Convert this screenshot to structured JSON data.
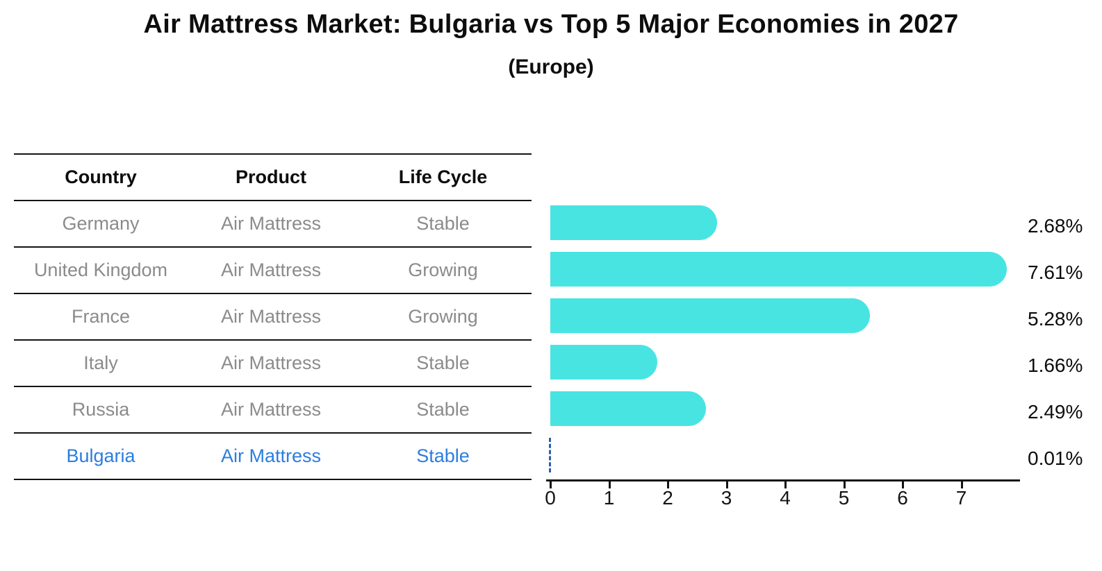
{
  "title": "Air Mattress Market: Bulgaria vs Top 5 Major Economies in 2027",
  "subtitle": "(Europe)",
  "colors": {
    "bar": "#48E4E2",
    "highlight_text": "#2B7DE0",
    "highlight_dash": "#2B5FAE",
    "row_text": "#8B8B8B",
    "line": "#141414"
  },
  "table": {
    "headers": {
      "country": "Country",
      "product": "Product",
      "life_cycle": "Life Cycle"
    },
    "rows": [
      {
        "country": "Germany",
        "product": "Air Mattress",
        "life_cycle": "Stable",
        "highlight": false
      },
      {
        "country": "United Kingdom",
        "product": "Air Mattress",
        "life_cycle": "Growing",
        "highlight": false
      },
      {
        "country": "France",
        "product": "Air Mattress",
        "life_cycle": "Growing",
        "highlight": false
      },
      {
        "country": "Italy",
        "product": "Air Mattress",
        "life_cycle": "Stable",
        "highlight": false
      },
      {
        "country": "Russia",
        "product": "Air Mattress",
        "life_cycle": "Stable",
        "highlight": false
      },
      {
        "country": "Bulgaria",
        "product": "Air Mattress",
        "life_cycle": "Stable",
        "highlight": true
      }
    ]
  },
  "chart_data": {
    "type": "bar",
    "orientation": "horizontal",
    "title": "Air Mattress Market: Bulgaria vs Top 5 Major Economies in 2027",
    "subtitle": "(Europe)",
    "categories": [
      "Germany",
      "United Kingdom",
      "France",
      "Italy",
      "Russia",
      "Bulgaria"
    ],
    "values": [
      2.68,
      7.61,
      5.28,
      1.66,
      2.49,
      0.01
    ],
    "value_labels": [
      "2.68%",
      "7.61%",
      "5.28%",
      "1.66%",
      "2.49%",
      "0.01%"
    ],
    "highlight_index": 5,
    "xlabel": "",
    "ylabel": "",
    "xticks": [
      0,
      1,
      2,
      3,
      4,
      5,
      6,
      7
    ],
    "xlim": [
      0,
      8
    ],
    "grid": false,
    "legend": false,
    "bar_color": "#48E4E2"
  }
}
